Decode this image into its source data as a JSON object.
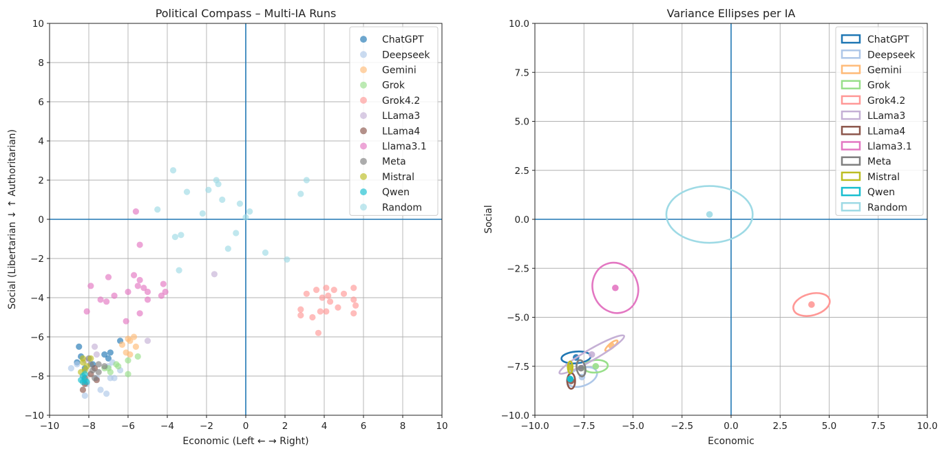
{
  "chart_data": [
    {
      "type": "scatter",
      "title": "Political Compass – Multi-IA Runs",
      "xlabel": "Economic (Left ← → Right)",
      "ylabel": "Social (Libertarian ↓ ↑ Authoritarian)",
      "xlim": [
        -10,
        10
      ],
      "ylim": [
        -10,
        10
      ],
      "xticks": [
        "−10",
        "−8",
        "−6",
        "−4",
        "−2",
        "0",
        "2",
        "4",
        "6",
        "8",
        "10"
      ],
      "yticks": [
        "−10",
        "−8",
        "−6",
        "−4",
        "−2",
        "0",
        "2",
        "4",
        "6",
        "8",
        "10"
      ],
      "grid": true,
      "legend": "top-right",
      "series": [
        {
          "name": "ChatGPT",
          "color": "#1f77b4",
          "points": [
            [
              -8.5,
              -6.5
            ],
            [
              -8.6,
              -7.3
            ],
            [
              -8.4,
              -7.0
            ],
            [
              -7.8,
              -7.4
            ],
            [
              -7.2,
              -6.9
            ],
            [
              -7.0,
              -7.1
            ],
            [
              -6.4,
              -6.2
            ],
            [
              -8.2,
              -7.6
            ],
            [
              -6.9,
              -6.8
            ]
          ]
        },
        {
          "name": "Deepseek",
          "color": "#aec7e8",
          "points": [
            [
              -8.9,
              -7.6
            ],
            [
              -8.6,
              -7.4
            ],
            [
              -8.1,
              -8.4
            ],
            [
              -7.6,
              -8.1
            ],
            [
              -7.4,
              -8.7
            ],
            [
              -7.1,
              -8.9
            ],
            [
              -6.9,
              -8.1
            ],
            [
              -6.7,
              -8.1
            ],
            [
              -6.4,
              -7.7
            ],
            [
              -7.0,
              -7.5
            ],
            [
              -8.2,
              -9.0
            ],
            [
              -6.8,
              -7.3
            ]
          ]
        },
        {
          "name": "Gemini",
          "color": "#ffbb78",
          "points": [
            [
              -6.3,
              -6.4
            ],
            [
              -6.1,
              -6.8
            ],
            [
              -5.9,
              -6.2
            ],
            [
              -5.7,
              -6.0
            ],
            [
              -5.6,
              -6.5
            ],
            [
              -6.0,
              -6.1
            ],
            [
              -5.9,
              -6.9
            ]
          ]
        },
        {
          "name": "Grok",
          "color": "#98df8a",
          "points": [
            [
              -7.2,
              -7.6
            ],
            [
              -6.9,
              -7.8
            ],
            [
              -6.6,
              -7.4
            ],
            [
              -6.0,
              -7.2
            ],
            [
              -5.5,
              -7.0
            ],
            [
              -6.0,
              -7.9
            ],
            [
              -7.0,
              -7.6
            ],
            [
              -6.5,
              -7.5
            ]
          ]
        },
        {
          "name": "Grok4.2",
          "color": "#ff9896",
          "points": [
            [
              2.8,
              -4.6
            ],
            [
              2.8,
              -4.9
            ],
            [
              3.1,
              -3.8
            ],
            [
              3.4,
              -5.0
            ],
            [
              3.6,
              -3.6
            ],
            [
              3.7,
              -5.8
            ],
            [
              3.8,
              -4.7
            ],
            [
              3.9,
              -4.0
            ],
            [
              4.1,
              -3.5
            ],
            [
              4.2,
              -3.9
            ],
            [
              4.3,
              -4.2
            ],
            [
              4.5,
              -3.6
            ],
            [
              4.7,
              -4.5
            ],
            [
              5.0,
              -3.8
            ],
            [
              5.5,
              -3.5
            ],
            [
              5.5,
              -4.1
            ],
            [
              5.6,
              -4.4
            ],
            [
              5.5,
              -4.8
            ],
            [
              4.1,
              -4.7
            ]
          ]
        },
        {
          "name": "LLama3",
          "color": "#c5b0d5",
          "points": [
            [
              -7.7,
              -6.5
            ],
            [
              -7.6,
              -6.9
            ],
            [
              -5.0,
              -6.2
            ],
            [
              -1.6,
              -2.8
            ],
            [
              -8.2,
              -7.2
            ]
          ]
        },
        {
          "name": "LLama4",
          "color": "#8c564b",
          "points": [
            [
              -8.2,
              -8.4
            ],
            [
              -8.3,
              -8.7
            ],
            [
              -8.2,
              -8.1
            ],
            [
              -7.9,
              -7.9
            ],
            [
              -7.6,
              -8.2
            ],
            [
              -7.7,
              -7.6
            ]
          ]
        },
        {
          "name": "Llama3.1",
          "color": "#e377c2",
          "points": [
            [
              -8.1,
              -4.7
            ],
            [
              -7.9,
              -3.4
            ],
            [
              -7.4,
              -4.1
            ],
            [
              -7.1,
              -4.2
            ],
            [
              -7.0,
              -2.95
            ],
            [
              -6.7,
              -3.9
            ],
            [
              -6.1,
              -5.2
            ],
            [
              -6.0,
              -3.7
            ],
            [
              -5.7,
              -2.85
            ],
            [
              -5.5,
              -3.4
            ],
            [
              -5.4,
              -3.1
            ],
            [
              -5.4,
              -4.8
            ],
            [
              -5.4,
              -1.3
            ],
            [
              -5.2,
              -3.5
            ],
            [
              -5.0,
              -3.7
            ],
            [
              -5.0,
              -4.1
            ],
            [
              -4.3,
              -3.9
            ],
            [
              -4.2,
              -3.3
            ],
            [
              -4.1,
              -3.7
            ],
            [
              -5.6,
              0.4
            ]
          ]
        },
        {
          "name": "Meta",
          "color": "#7f7f7f",
          "points": [
            [
              -8.0,
              -7.1
            ],
            [
              -7.8,
              -7.7
            ],
            [
              -7.7,
              -8.1
            ],
            [
              -7.5,
              -7.8
            ],
            [
              -7.5,
              -7.4
            ],
            [
              -7.2,
              -7.5
            ],
            [
              -7.9,
              -7.4
            ]
          ]
        },
        {
          "name": "Mistral",
          "color": "#bcbd22",
          "points": [
            [
              -8.4,
              -7.8
            ],
            [
              -8.3,
              -7.3
            ],
            [
              -8.2,
              -7.7
            ],
            [
              -8.1,
              -7.5
            ],
            [
              -7.9,
              -7.1
            ],
            [
              -8.3,
              -7.1
            ]
          ]
        },
        {
          "name": "Qwen",
          "color": "#17becf",
          "points": [
            [
              -8.4,
              -8.2
            ],
            [
              -8.3,
              -8.0
            ],
            [
              -8.2,
              -8.2
            ],
            [
              -8.1,
              -8.3
            ],
            [
              -8.2,
              -7.9
            ],
            [
              -8.3,
              -8.3
            ]
          ]
        },
        {
          "name": "Random",
          "color": "#9edae5",
          "points": [
            [
              -3.7,
              2.5
            ],
            [
              -3.0,
              1.4
            ],
            [
              -1.9,
              1.5
            ],
            [
              -1.5,
              2.0
            ],
            [
              -1.4,
              1.8
            ],
            [
              -1.2,
              1.0
            ],
            [
              -2.2,
              0.3
            ],
            [
              -4.5,
              0.5
            ],
            [
              -0.3,
              0.8
            ],
            [
              0.2,
              0.4
            ],
            [
              0.0,
              0.1
            ],
            [
              -3.3,
              -0.8
            ],
            [
              -3.6,
              -0.9
            ],
            [
              -0.5,
              -0.7
            ],
            [
              -0.9,
              -1.5
            ],
            [
              1.0,
              -1.7
            ],
            [
              2.1,
              -2.05
            ],
            [
              -3.4,
              -2.6
            ],
            [
              2.8,
              1.3
            ],
            [
              3.1,
              2.0
            ]
          ]
        }
      ]
    },
    {
      "type": "scatter",
      "title": "Variance Ellipses per IA",
      "xlabel": "Economic",
      "ylabel": "Social",
      "xlim": [
        -10,
        10
      ],
      "ylim": [
        -10,
        10
      ],
      "xticks": [
        "−10.0",
        "−7.5",
        "−5.0",
        "−2.5",
        "0.0",
        "2.5",
        "5.0",
        "7.5",
        "10.0"
      ],
      "yticks": [
        "−10.0",
        "−7.5",
        "−5.0",
        "−2.5",
        "0.0",
        "2.5",
        "5.0",
        "7.5",
        "10.0"
      ],
      "grid": true,
      "legend": "top-right",
      "series": [
        {
          "name": "ChatGPT",
          "color": "#1f77b4",
          "mean": [
            -7.9,
            -7.05
          ],
          "radii": [
            0.75,
            0.3
          ],
          "angle_deg": 5
        },
        {
          "name": "Deepseek",
          "color": "#aec7e8",
          "mean": [
            -7.6,
            -8.05
          ],
          "radii": [
            0.8,
            0.45
          ],
          "angle_deg": 20
        },
        {
          "name": "Gemini",
          "color": "#ffbb78",
          "mean": [
            -6.1,
            -6.45
          ],
          "radii": [
            0.4,
            0.12
          ],
          "angle_deg": 40
        },
        {
          "name": "Grok",
          "color": "#98df8a",
          "mean": [
            -6.9,
            -7.5
          ],
          "radii": [
            0.62,
            0.32
          ],
          "angle_deg": 5
        },
        {
          "name": "Grok4.2",
          "color": "#ff9896",
          "mean": [
            4.1,
            -4.35
          ],
          "radii": [
            0.95,
            0.55
          ],
          "angle_deg": 15
        },
        {
          "name": "LLama3",
          "color": "#c5b0d5",
          "mean": [
            -7.1,
            -6.9
          ],
          "radii": [
            1.9,
            0.28
          ],
          "angle_deg": 30
        },
        {
          "name": "LLama4",
          "color": "#8c564b",
          "mean": [
            -8.15,
            -8.25
          ],
          "radii": [
            0.2,
            0.4
          ],
          "angle_deg": 0
        },
        {
          "name": "Llama3.1",
          "color": "#e377c2",
          "mean": [
            -5.9,
            -3.5
          ],
          "radii": [
            1.15,
            1.3
          ],
          "angle_deg": 20
        },
        {
          "name": "Meta",
          "color": "#7f7f7f",
          "mean": [
            -7.65,
            -7.6
          ],
          "radii": [
            0.22,
            0.42
          ],
          "angle_deg": 10
        },
        {
          "name": "Mistral",
          "color": "#bcbd22",
          "mean": [
            -8.2,
            -7.55
          ],
          "radii": [
            0.12,
            0.3
          ],
          "angle_deg": 0
        },
        {
          "name": "Qwen",
          "color": "#17becf",
          "mean": [
            -8.2,
            -8.15
          ],
          "radii": [
            0.1,
            0.12
          ],
          "angle_deg": 0
        },
        {
          "name": "Random",
          "color": "#9edae5",
          "mean": [
            -1.1,
            0.25
          ],
          "radii": [
            2.2,
            1.45
          ],
          "angle_deg": 0
        }
      ]
    }
  ]
}
